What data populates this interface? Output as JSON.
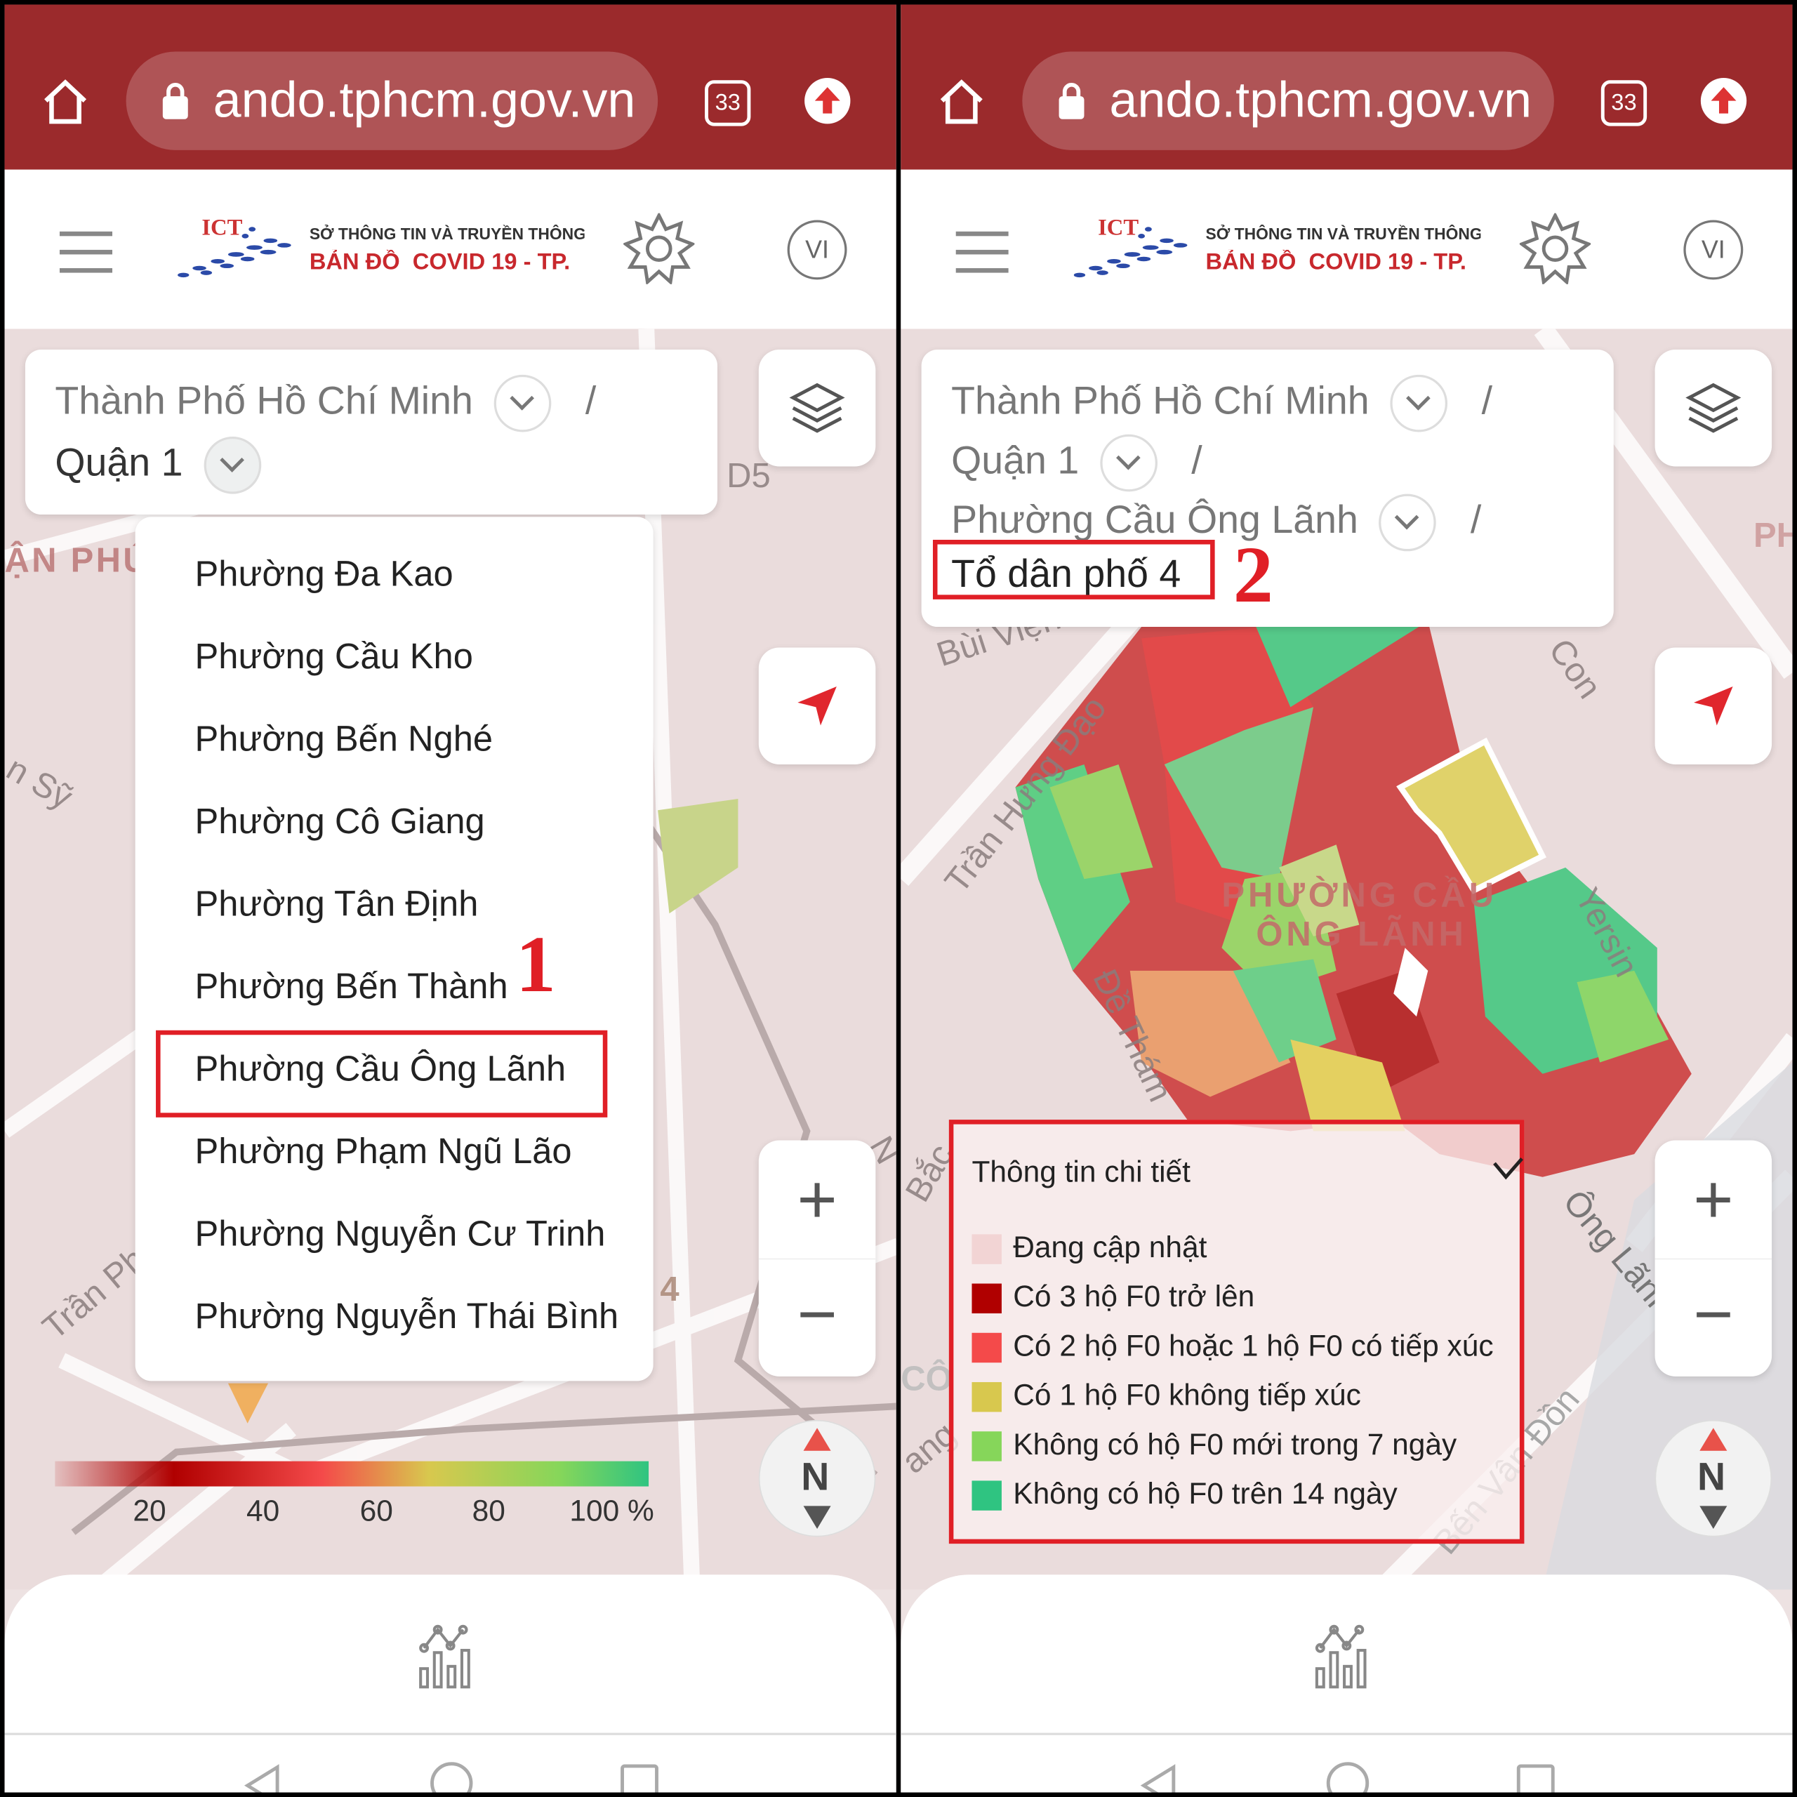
{
  "browser": {
    "url": "ando.tphcm.gov.vn",
    "tab_count": "33",
    "theme_color": "#9b2a2c"
  },
  "app": {
    "logo_text": "ICT",
    "org_line": "SỞ THÔNG TIN VÀ TRUYỀN THÔNG",
    "title_line": "BẢN ĐỒ  COVID 19 - TP.",
    "language": "VI"
  },
  "left": {
    "breadcrumb": [
      "Thành Phố Hồ Chí Minh",
      "Quận 1"
    ],
    "dropdown": [
      "Phường Đa Kao",
      "Phường Cầu Kho",
      "Phường Bến Nghé",
      "Phường Cô Giang",
      "Phường Tân Định",
      "Phường Bến Thành",
      "Phường Cầu Ông Lãnh",
      "Phường Phạm Ngũ Lão",
      "Phường Nguyễn Cư Trinh",
      "Phường Nguyễn Thái Bình"
    ],
    "selected": "Phường Cầu Ông Lãnh",
    "annotation": "1",
    "scale_labels": [
      "20",
      "40",
      "60",
      "80",
      "100 %"
    ],
    "map_labels": [
      "D5",
      "ẬN PHÚ",
      "n Sỹ",
      "Trần Phú",
      "4",
      "N"
    ]
  },
  "right": {
    "breadcrumb": [
      "Thành Phố Hồ Chí Minh",
      "Quận 1",
      "Phường Cầu Ông Lãnh",
      "Tổ dân phố 4"
    ],
    "annotation": "2",
    "map_labels": [
      "Bùi Viện",
      "Trần Hưng Đạo",
      "Con",
      "Yersin",
      "Đề Thám",
      "PHƯỜNG CẦU",
      "ÔNG LÃNH",
      "Ông Lãnh",
      "Bến Vân Đồn",
      "Bắc",
      "PH",
      "CÔ",
      "ang"
    ],
    "legend": {
      "title": "Thông tin chi tiết",
      "items": [
        {
          "label": "Đang cập nhật",
          "color": "#f2d4d4"
        },
        {
          "label": "Có 3 hộ F0 trở lên",
          "color": "#b00000"
        },
        {
          "label": "Có 2 hộ F0 hoặc 1 hộ F0 có tiếp xúc",
          "color": "#f44a4a"
        },
        {
          "label": "Có 1 hộ F0 không tiếp xúc",
          "color": "#d8c84e"
        },
        {
          "label": "Không có hộ F0 mới trong 7 ngày",
          "color": "#86d65a"
        },
        {
          "label": "Không có hộ F0 trên 14 ngày",
          "color": "#2fc481"
        }
      ]
    }
  },
  "compass": {
    "label": "N"
  }
}
